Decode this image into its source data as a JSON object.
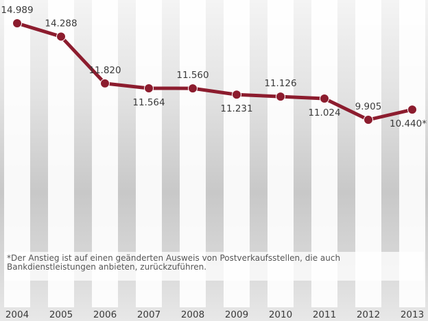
{
  "chart_data": {
    "type": "line",
    "categories": [
      "2004",
      "2005",
      "2006",
      "2007",
      "2008",
      "2009",
      "2010",
      "2011",
      "2012",
      "2013"
    ],
    "values": [
      14989,
      14288,
      11820,
      11564,
      11560,
      11231,
      11126,
      11024,
      9905,
      10440
    ],
    "value_labels": [
      "14.989",
      "14.288",
      "11.820",
      "11.564",
      "11.560",
      "11.231",
      "11.126",
      "11.024",
      "9.905",
      "10.440*"
    ],
    "color": "#8c1c2e",
    "footnote": "*Der Anstieg ist auf einen geänderten Ausweis von Postverkaufsstellen, die auch Bankdienstleistungen anbieten, zurückzuführen."
  }
}
